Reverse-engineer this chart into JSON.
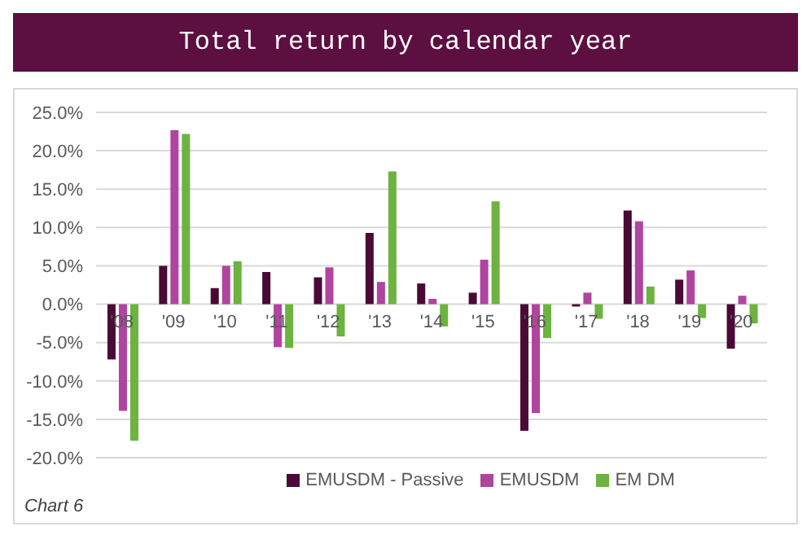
{
  "chart_data": {
    "type": "bar",
    "title": "Total return by calendar year",
    "categories": [
      "'08",
      "'09",
      "'10",
      "'11",
      "'12",
      "'13",
      "'14",
      "'15",
      "'16",
      "'17",
      "'18",
      "'19",
      "'20"
    ],
    "series": [
      {
        "name": "EMUSDM - Passive",
        "color": "#4a0a35",
        "values": [
          -7.2,
          5.0,
          2.1,
          4.2,
          3.5,
          9.3,
          2.7,
          1.5,
          -16.5,
          -0.3,
          12.2,
          3.2,
          -5.8
        ]
      },
      {
        "name": "EMUSDM",
        "color": "#b0449e",
        "values": [
          -13.9,
          22.7,
          5.0,
          -5.6,
          4.8,
          2.9,
          0.7,
          5.8,
          -14.2,
          1.5,
          10.8,
          4.4,
          1.1
        ]
      },
      {
        "name": "EM DM",
        "color": "#6cb33f",
        "values": [
          -17.8,
          22.2,
          5.6,
          -5.7,
          -4.2,
          17.3,
          -2.9,
          13.4,
          -4.4,
          -1.9,
          2.3,
          -1.8,
          -2.5
        ]
      }
    ],
    "ylim": [
      -20,
      25
    ],
    "yticks": [
      {
        "value": -20,
        "label": "-20.0%"
      },
      {
        "value": -15,
        "label": "-15.0%"
      },
      {
        "value": -10,
        "label": "-10.0%"
      },
      {
        "value": -5,
        "label": "-5.0%"
      },
      {
        "value": 0,
        "label": "0.0%"
      },
      {
        "value": 5,
        "label": "5.0%"
      },
      {
        "value": 10,
        "label": "10.0%"
      },
      {
        "value": 15,
        "label": "15.0%"
      },
      {
        "value": 20,
        "label": "20.0%"
      },
      {
        "value": 25,
        "label": "25.0%"
      }
    ],
    "grid": "y",
    "legend": "bottom",
    "annotations": [
      "Chart 6"
    ]
  }
}
